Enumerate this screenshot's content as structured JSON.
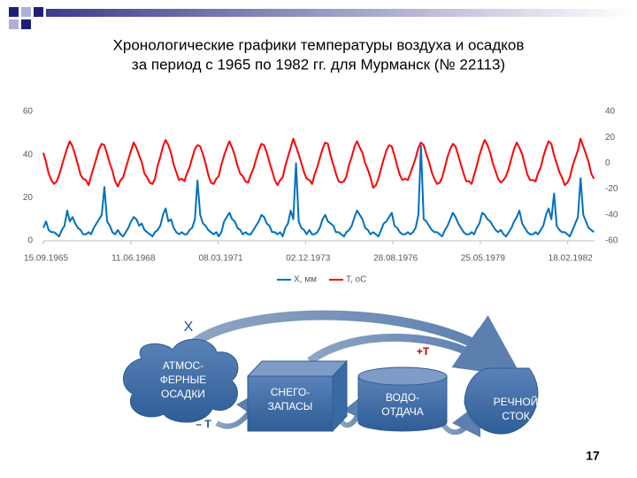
{
  "title": [
    "Хронологические графики температуры воздуха и осадков",
    "за период с 1965 по 1982 гг. для Мурманск (№ 22113)"
  ],
  "chart_data": {
    "type": "line",
    "x": [
      "15.09.1965",
      "15.10.1965",
      "15.11.1965",
      "15.12.1965",
      "15.01.1966",
      "15.02.1966",
      "15.03.1966",
      "15.04.1966",
      "15.05.1966",
      "15.06.1966",
      "15.07.1966",
      "15.08.1966",
      "15.09.1966",
      "15.10.1966",
      "15.11.1966",
      "15.12.1966",
      "15.01.1967",
      "15.02.1967",
      "15.03.1967",
      "15.04.1967",
      "15.05.1967",
      "15.06.1967",
      "15.07.1967",
      "15.08.1967",
      "15.09.1967",
      "15.10.1967",
      "15.11.1967",
      "15.12.1967",
      "15.01.1968",
      "15.02.1968",
      "15.03.1968",
      "15.04.1968",
      "15.05.1968",
      "15.06.1968",
      "15.07.1968",
      "15.08.1968",
      "15.09.1968",
      "15.10.1968",
      "15.11.1968",
      "15.12.1968",
      "15.01.1969",
      "15.02.1969",
      "15.03.1969",
      "15.04.1969",
      "15.05.1969",
      "15.06.1969",
      "15.07.1969",
      "15.08.1969",
      "15.09.1969",
      "15.10.1969",
      "15.11.1969",
      "15.12.1969",
      "15.01.1970",
      "15.02.1970",
      "15.03.1970",
      "15.04.1970",
      "15.05.1970",
      "15.06.1970",
      "15.07.1970",
      "15.08.1970",
      "15.09.1970",
      "15.10.1970",
      "15.11.1970",
      "15.12.1970",
      "15.01.1971",
      "15.02.1971",
      "15.03.1971",
      "15.04.1971",
      "15.05.1971",
      "15.06.1971",
      "15.07.1971",
      "15.08.1971",
      "15.09.1971",
      "15.10.1971",
      "15.11.1971",
      "15.12.1971",
      "15.01.1972",
      "15.02.1972",
      "15.03.1972",
      "15.04.1972",
      "15.05.1972",
      "15.06.1972",
      "15.07.1972",
      "15.08.1972",
      "15.09.1972",
      "15.10.1972",
      "15.11.1972",
      "15.12.1972",
      "15.01.1973",
      "15.02.1973",
      "15.03.1973",
      "15.04.1973",
      "15.05.1973",
      "15.06.1973",
      "15.07.1973",
      "15.08.1973",
      "15.09.1973",
      "15.10.1973",
      "15.11.1973",
      "15.12.1973",
      "15.01.1974",
      "15.02.1974",
      "15.03.1974",
      "15.04.1974",
      "15.05.1974",
      "15.06.1974",
      "15.07.1974",
      "15.08.1974",
      "15.09.1974",
      "15.10.1974",
      "15.11.1974",
      "15.12.1974",
      "15.01.1975",
      "15.02.1975",
      "15.03.1975",
      "15.04.1975",
      "15.05.1975",
      "15.06.1975",
      "15.07.1975",
      "15.08.1975",
      "15.09.1975",
      "15.10.1975",
      "15.11.1975",
      "15.12.1975",
      "15.01.1976",
      "15.02.1976",
      "15.03.1976",
      "15.04.1976",
      "15.05.1976",
      "15.06.1976",
      "15.07.1976",
      "15.08.1976",
      "15.09.1976",
      "15.10.1976",
      "15.11.1976",
      "15.12.1976",
      "15.01.1977",
      "15.02.1977",
      "15.03.1977",
      "15.04.1977",
      "15.05.1977",
      "15.06.1977",
      "15.07.1977",
      "15.08.1977",
      "15.09.1977",
      "15.10.1977",
      "15.11.1977",
      "15.12.1977",
      "15.01.1978",
      "15.02.1978",
      "15.03.1978",
      "15.04.1978",
      "15.05.1978",
      "15.06.1978",
      "15.07.1978",
      "15.08.1978",
      "15.09.1978",
      "15.10.1978",
      "15.11.1978",
      "15.12.1978",
      "15.01.1979",
      "15.02.1979",
      "15.03.1979",
      "15.04.1979",
      "15.05.1979",
      "15.06.1979",
      "15.07.1979",
      "15.08.1979",
      "15.09.1979",
      "15.10.1979",
      "15.11.1979",
      "15.12.1979",
      "15.01.1980",
      "15.02.1980",
      "15.03.1980",
      "15.04.1980",
      "15.05.1980",
      "15.06.1980",
      "15.07.1980",
      "15.08.1980",
      "15.09.1980",
      "15.10.1980",
      "15.11.1980",
      "15.12.1980",
      "15.01.1981",
      "15.02.1981",
      "15.03.1981",
      "15.04.1981",
      "15.05.1981",
      "15.06.1981",
      "15.07.1981",
      "15.08.1981",
      "15.09.1981",
      "15.10.1981",
      "15.11.1981",
      "15.12.1981",
      "15.01.1982",
      "15.02.1982",
      "15.03.1982",
      "15.04.1982",
      "15.05.1982",
      "15.06.1982",
      "15.07.1982",
      "15.08.1982",
      "15.09.1982",
      "15.10.1982",
      "15.11.1982",
      "15.12.1982"
    ],
    "series": [
      {
        "name": "X, мм",
        "color": "#0070c0",
        "values": [
          6,
          9,
          5,
          4,
          4,
          3,
          2,
          5,
          7,
          14,
          9,
          11,
          8,
          6,
          5,
          3,
          3,
          4,
          3,
          6,
          8,
          10,
          12,
          25,
          9,
          7,
          4,
          3,
          5,
          3,
          2,
          4,
          6,
          9,
          11,
          10,
          7,
          8,
          5,
          4,
          3,
          2,
          4,
          5,
          7,
          12,
          15,
          9,
          10,
          6,
          4,
          3,
          4,
          3,
          3,
          5,
          6,
          10,
          28,
          12,
          8,
          7,
          5,
          4,
          3,
          4,
          2,
          4,
          9,
          11,
          13,
          10,
          9,
          6,
          5,
          3,
          4,
          3,
          3,
          5,
          7,
          9,
          12,
          11,
          8,
          7,
          4,
          4,
          3,
          4,
          2,
          6,
          8,
          14,
          10,
          36,
          9,
          6,
          5,
          3,
          5,
          3,
          3,
          4,
          6,
          10,
          12,
          9,
          8,
          7,
          4,
          4,
          3,
          2,
          4,
          5,
          7,
          11,
          14,
          12,
          10,
          6,
          5,
          3,
          4,
          3,
          2,
          5,
          8,
          9,
          11,
          13,
          7,
          6,
          4,
          3,
          3,
          4,
          3,
          4,
          6,
          12,
          44,
          10,
          9,
          7,
          5,
          4,
          4,
          3,
          2,
          5,
          7,
          10,
          13,
          11,
          8,
          6,
          4,
          3,
          3,
          4,
          3,
          6,
          8,
          13,
          12,
          10,
          9,
          7,
          5,
          4,
          5,
          3,
          2,
          4,
          6,
          9,
          11,
          14,
          8,
          6,
          4,
          3,
          3,
          4,
          3,
          5,
          7,
          12,
          15,
          10,
          22,
          7,
          5,
          4,
          4,
          3,
          2,
          5,
          8,
          11,
          29,
          12,
          9,
          6,
          5,
          4
        ]
      },
      {
        "name": "T, oC",
        "color": "#ff0000",
        "axis": "y2",
        "values": [
          8,
          1,
          -8,
          -13,
          -16,
          -14,
          -9,
          -2,
          5,
          12,
          17,
          13,
          6,
          -1,
          -9,
          -12,
          -13,
          -17,
          -10,
          -3,
          4,
          11,
          15,
          14,
          7,
          0,
          -6,
          -14,
          -18,
          -13,
          -11,
          -4,
          3,
          10,
          16,
          12,
          6,
          1,
          -8,
          -11,
          -15,
          -16,
          -12,
          -2,
          5,
          13,
          18,
          14,
          8,
          -1,
          -7,
          -13,
          -12,
          -14,
          -8,
          -3,
          4,
          11,
          14,
          13,
          7,
          0,
          -9,
          -15,
          -16,
          -12,
          -10,
          -1,
          6,
          12,
          17,
          12,
          6,
          -2,
          -8,
          -10,
          -14,
          -15,
          -9,
          -4,
          3,
          10,
          15,
          14,
          8,
          1,
          -6,
          -13,
          -17,
          -13,
          -11,
          -2,
          5,
          12,
          19,
          13,
          7,
          0,
          -7,
          -12,
          -13,
          -16,
          -9,
          -3,
          4,
          11,
          16,
          15,
          6,
          -1,
          -8,
          -14,
          -15,
          -14,
          -10,
          -1,
          5,
          13,
          17,
          12,
          8,
          0,
          -5,
          -11,
          -19,
          -17,
          -12,
          -4,
          3,
          10,
          14,
          13,
          6,
          -2,
          -9,
          -13,
          -12,
          -13,
          -8,
          -2,
          4,
          12,
          16,
          14,
          7,
          1,
          -7,
          -12,
          -16,
          -15,
          -11,
          -3,
          5,
          11,
          15,
          13,
          6,
          -1,
          -8,
          -14,
          -14,
          -16,
          -9,
          -2,
          6,
          13,
          18,
          14,
          8,
          0,
          -6,
          -12,
          -15,
          -13,
          -10,
          -4,
          4,
          11,
          16,
          12,
          7,
          -1,
          -9,
          -13,
          -13,
          -14,
          -8,
          -3,
          5,
          12,
          17,
          15,
          6,
          0,
          -7,
          -11,
          -17,
          -15,
          -11,
          -2,
          4,
          10,
          19,
          13,
          7,
          1,
          -8,
          -12
        ]
      }
    ],
    "xlim": [
      "15.09.1965",
      "22.12.1982"
    ],
    "xticks": [
      "15.09.1965",
      "11.06.1968",
      "08.03.1971",
      "02.12.1973",
      "28.08.1976",
      "25.05.1979",
      "18.02.1982"
    ],
    "ylim": [
      0,
      60
    ],
    "yticks": [
      0,
      20,
      40,
      60
    ],
    "y2lim": [
      -60,
      40
    ],
    "y2ticks": [
      -60,
      -40,
      -20,
      0,
      20,
      40
    ],
    "legend": "bottom"
  },
  "diagram": {
    "x_label": "X",
    "plus_t": "+Т",
    "minus_t": "– Т",
    "nodes": [
      {
        "lines": [
          "АТМОС-",
          "ФЕРНЫЕ",
          "ОСАДКИ"
        ]
      },
      {
        "lines": [
          "СНЕГО-",
          "ЗАПАСЫ"
        ]
      },
      {
        "lines": [
          "ВОДО-",
          "ОТДАЧА"
        ]
      },
      {
        "lines": [
          "РЕЧНОЙ",
          "СТОК"
        ]
      }
    ]
  },
  "page_number": "17"
}
